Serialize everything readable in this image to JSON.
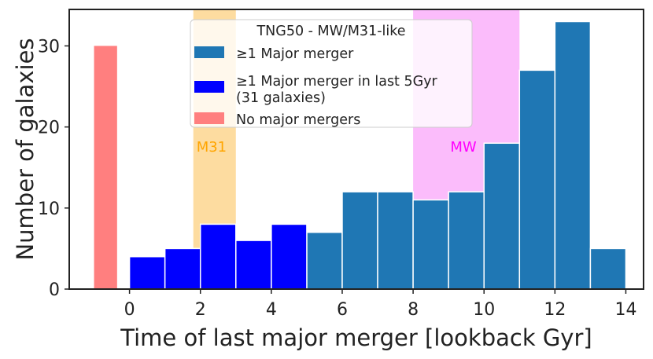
{
  "chart_data": {
    "type": "bar",
    "xlabel": "Time of last major merger [lookback Gyr]",
    "ylabel": "Number of galaxies",
    "xlim": [
      -1.7,
      14.5
    ],
    "ylim": [
      0,
      34.5
    ],
    "xticks": [
      0,
      2,
      4,
      6,
      8,
      10,
      12,
      14
    ],
    "yticks": [
      0,
      10,
      20,
      30
    ],
    "grid": false,
    "legend_position": "top-center",
    "legend_title": "TNG50 - MW/M31-like",
    "bands": [
      {
        "name": "M31",
        "x0": 1.8,
        "x1": 3.0,
        "color": "#fddca0"
      },
      {
        "name": "MW",
        "x0": 8.0,
        "x1": 11.0,
        "color": "#fbbcfb"
      }
    ],
    "series": [
      {
        "name": "≥1 Major merger",
        "color": "#1f77b4",
        "bin_edges": [
          0,
          1,
          2,
          3,
          4,
          5,
          6,
          7,
          8,
          9,
          10,
          11,
          12,
          13,
          14
        ],
        "values": [
          4,
          5,
          8,
          6,
          8,
          7,
          12,
          12,
          11,
          12,
          18,
          27,
          33,
          5
        ]
      },
      {
        "name": "≥1 Major merger in last 5Gyr\n(31 galaxies)",
        "color": "#0000ff",
        "bin_edges": [
          0,
          1,
          2,
          3,
          4,
          5
        ],
        "values": [
          4,
          5,
          8,
          6,
          8
        ]
      },
      {
        "name": "No major mergers",
        "color": "#ff7f7f",
        "bin_edges": [
          -1,
          -0.35
        ],
        "values": [
          30
        ]
      }
    ]
  }
}
